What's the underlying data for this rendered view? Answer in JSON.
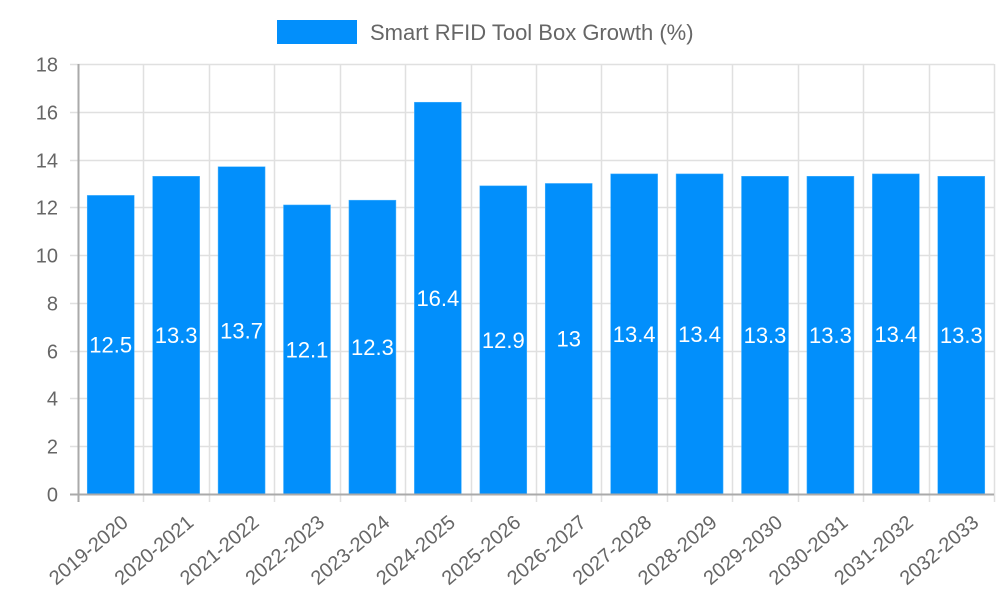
{
  "chart_data": {
    "type": "bar",
    "title": "",
    "legend": [
      {
        "label": "Smart RFID Tool Box Growth (%)",
        "color": "#028ffb"
      }
    ],
    "legend_position": "top",
    "categories": [
      "2019-2020",
      "2020-2021",
      "2021-2022",
      "2022-2023",
      "2023-2024",
      "2024-2025",
      "2025-2026",
      "2026-2027",
      "2027-2028",
      "2028-2029",
      "2029-2030",
      "2030-2031",
      "2031-2032",
      "2032-2033"
    ],
    "series": [
      {
        "name": "Smart RFID Tool Box Growth (%)",
        "values": [
          12.5,
          13.3,
          13.7,
          12.1,
          12.3,
          16.4,
          12.9,
          13,
          13.4,
          13.4,
          13.3,
          13.3,
          13.4,
          13.3
        ],
        "color": "#028ffb"
      }
    ],
    "data_labels": [
      "12.5",
      "13.3",
      "13.7",
      "12.1",
      "12.3",
      "16.4",
      "12.9",
      "13",
      "13.4",
      "13.4",
      "13.3",
      "13.3",
      "13.4",
      "13.3"
    ],
    "xlabel": "",
    "ylabel": "",
    "ylim": [
      0,
      18
    ],
    "yticks": [
      0,
      2,
      4,
      6,
      8,
      10,
      12,
      14,
      16,
      18
    ],
    "grid": true
  }
}
